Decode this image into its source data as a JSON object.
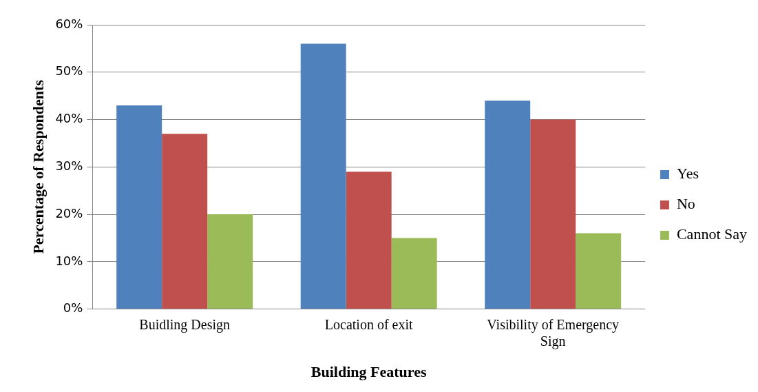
{
  "chart_data": {
    "type": "bar",
    "xlabel": "Building Features",
    "ylabel": "Percentage of Respondents",
    "categories": [
      "Buidling Design",
      "Location of exit",
      "Visibility of Emergency Sign"
    ],
    "series": [
      {
        "name": "Yes",
        "color": "#4f81bd",
        "values": [
          43,
          56,
          44
        ]
      },
      {
        "name": "No",
        "color": "#c0504d",
        "values": [
          37,
          29,
          40
        ]
      },
      {
        "name": "Cannot Say",
        "color": "#9bbb59",
        "values": [
          20,
          15,
          16
        ]
      }
    ],
    "ylim": [
      0,
      60
    ],
    "yticks": [
      {
        "value": 0,
        "label": "0%"
      },
      {
        "value": 10,
        "label": "10%"
      },
      {
        "value": 20,
        "label": "20%"
      },
      {
        "value": 30,
        "label": "30%"
      },
      {
        "value": 40,
        "label": "40%"
      },
      {
        "value": 50,
        "label": "50%"
      },
      {
        "value": 60,
        "label": "60%"
      }
    ],
    "grid": "y",
    "legend": "right"
  }
}
